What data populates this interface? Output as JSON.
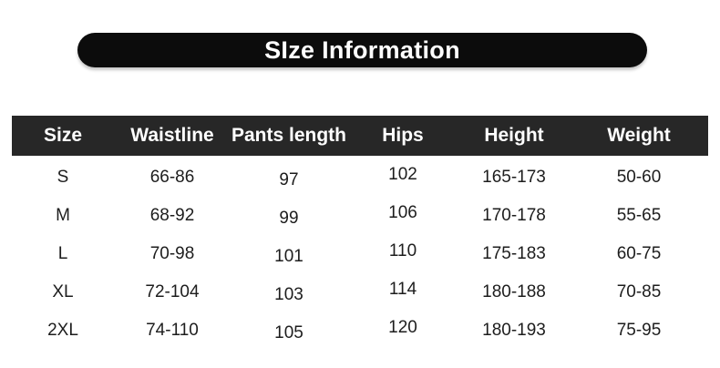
{
  "banner": {
    "title": "SIze Information"
  },
  "chart_data": {
    "type": "table",
    "title": "SIze Information",
    "columns": [
      "Size",
      "Waistline",
      "Pants length",
      "Hips",
      "Height",
      "Weight"
    ],
    "rows": [
      [
        "S",
        "66-86",
        "97",
        "102",
        "165-173",
        "50-60"
      ],
      [
        "M",
        "68-92",
        "99",
        "106",
        "170-178",
        "55-65"
      ],
      [
        "L",
        "70-98",
        "101",
        "110",
        "175-183",
        "60-75"
      ],
      [
        "XL",
        "72-104",
        "103",
        "114",
        "180-188",
        "70-85"
      ],
      [
        "2XL",
        "74-110",
        "105",
        "120",
        "180-193",
        "75-95"
      ]
    ]
  },
  "colors": {
    "page_bg": "#ffffff",
    "banner_bg": "#0c0c0c",
    "header_bg": "#272727",
    "header_text": "#ffffff",
    "body_text": "#1d1d1d"
  }
}
